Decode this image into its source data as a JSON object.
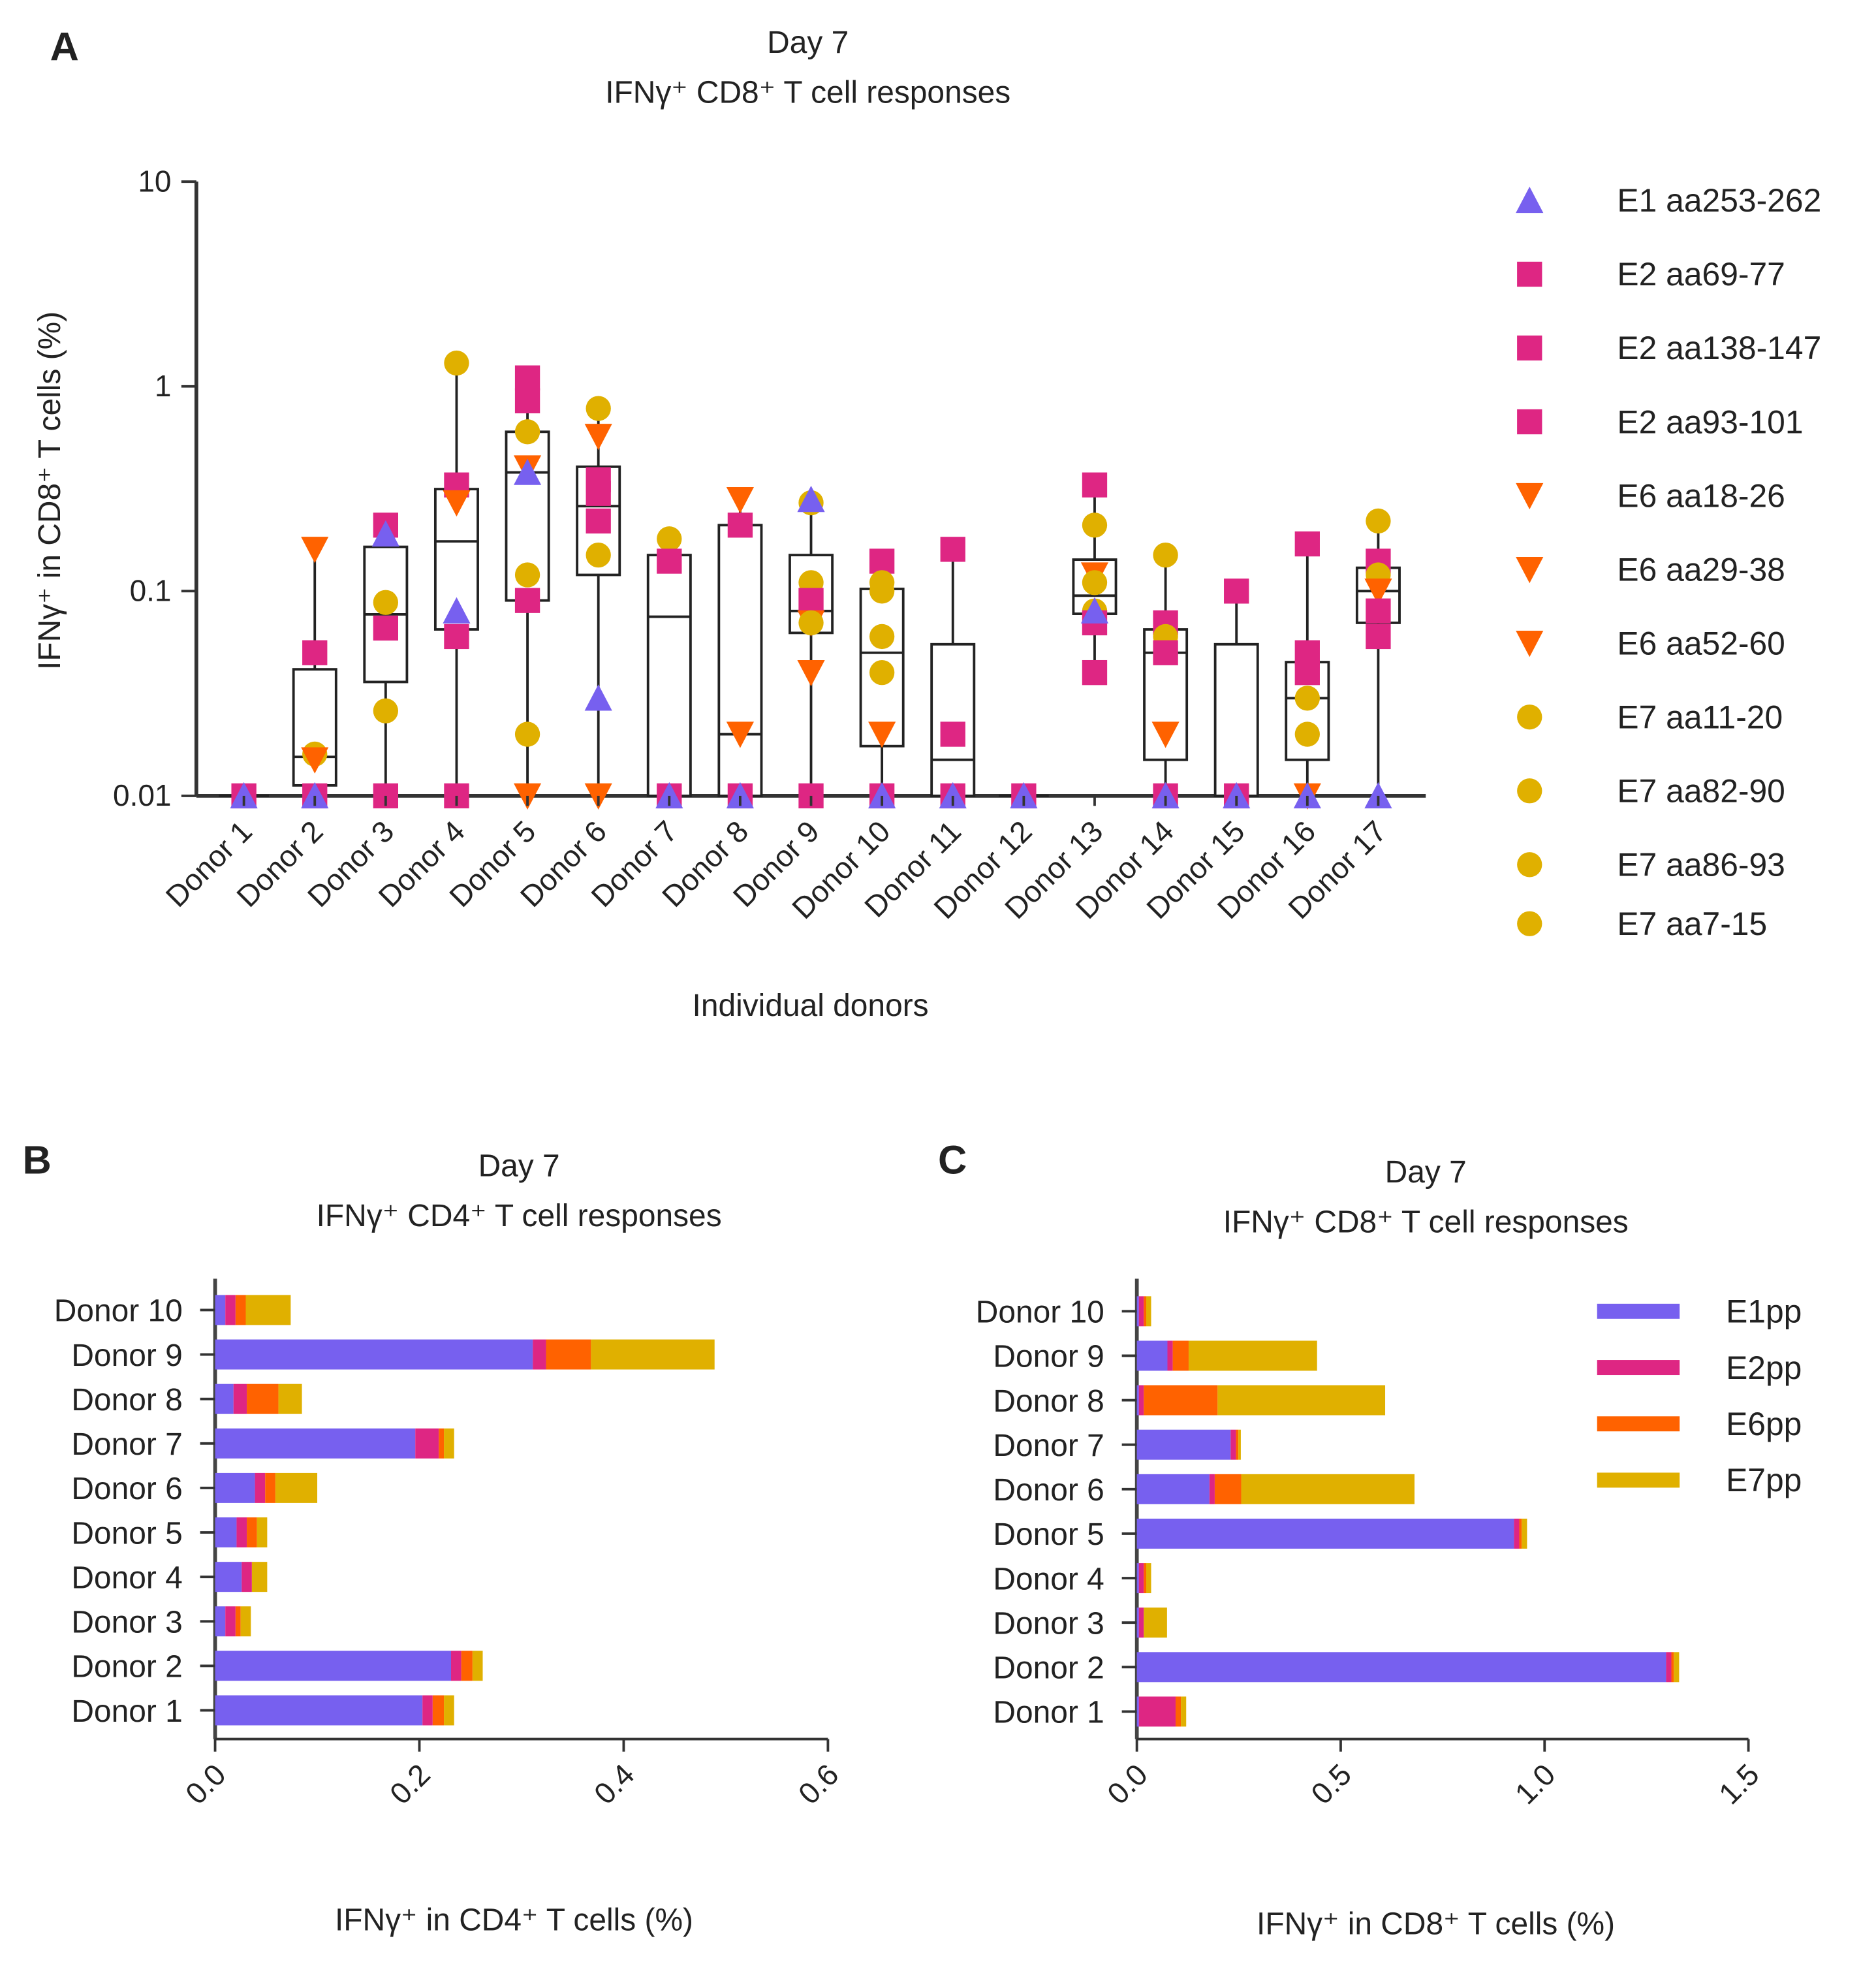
{
  "colors": {
    "E1": "#7760ef",
    "E2": "#de2683",
    "E6": "#ff6200",
    "E7": "#e0b000"
  },
  "chart_data": [
    {
      "panel": "A",
      "type": "scatter",
      "title": [
        "Day 7",
        "IFNγ⁺ CD8⁺ T cell responses"
      ],
      "xlabel": "Individual donors",
      "ylabel": "IFNγ⁺ in CD8⁺ T cells (%)",
      "yscale": "log",
      "ylim": [
        0.01,
        10
      ],
      "yticks": [
        "10",
        "1",
        "0.1",
        "0.01"
      ],
      "overlay": "box-and-whiskers (min to max) per donor",
      "legend_position": "right",
      "legend": [
        {
          "label": "E1 aa253-262",
          "group": "E1",
          "marker": "triangle-up"
        },
        {
          "label": "E2 aa69-77",
          "group": "E2",
          "marker": "square"
        },
        {
          "label": "E2 aa138-147",
          "group": "E2",
          "marker": "square"
        },
        {
          "label": "E2 aa93-101",
          "group": "E2",
          "marker": "square"
        },
        {
          "label": "E6 aa18-26",
          "group": "E6",
          "marker": "triangle-down"
        },
        {
          "label": "E6 aa29-38",
          "group": "E6",
          "marker": "triangle-down"
        },
        {
          "label": "E6 aa52-60",
          "group": "E6",
          "marker": "triangle-down"
        },
        {
          "label": "E7 aa11-20",
          "group": "E7",
          "marker": "circle"
        },
        {
          "label": "E7 aa82-90",
          "group": "E7",
          "marker": "circle"
        },
        {
          "label": "E7 aa86-93",
          "group": "E7",
          "marker": "circle"
        },
        {
          "label": "E7 aa7-15",
          "group": "E7",
          "marker": "circle"
        }
      ],
      "categories": [
        "Donor 1",
        "Donor 2",
        "Donor 3",
        "Donor 4",
        "Donor 5",
        "Donor 6",
        "Donor 7",
        "Donor 8",
        "Donor 9",
        "Donor 10",
        "Donor 11",
        "Donor 12",
        "Donor 13",
        "Donor 14",
        "Donor 15",
        "Donor 16",
        "Donor 17"
      ],
      "points": [
        [
          [
            "E2",
            0.01
          ],
          [
            "E1",
            0.01
          ]
        ],
        [
          [
            "E6",
            0.16
          ],
          [
            "E2",
            0.05
          ],
          [
            "E7",
            0.016
          ],
          [
            "E6",
            0.015
          ],
          [
            "E2",
            0.01
          ],
          [
            "E1",
            0.01
          ]
        ],
        [
          [
            "E2",
            0.21
          ],
          [
            "E1",
            0.19
          ],
          [
            "E7",
            0.088
          ],
          [
            "E2",
            0.066
          ],
          [
            "E7",
            0.026
          ],
          [
            "E2",
            0.01
          ]
        ],
        [
          [
            "E7",
            1.3
          ],
          [
            "E2",
            0.33
          ],
          [
            "E6",
            0.27
          ],
          [
            "E1",
            0.08
          ],
          [
            "E2",
            0.06
          ],
          [
            "E2",
            0.01
          ]
        ],
        [
          [
            "E2",
            1.1
          ],
          [
            "E2",
            0.85
          ],
          [
            "E7",
            0.6
          ],
          [
            "E6",
            0.4
          ],
          [
            "E1",
            0.38
          ],
          [
            "E7",
            0.12
          ],
          [
            "E2",
            0.09
          ],
          [
            "E7",
            0.02
          ],
          [
            "E6",
            0.01
          ]
        ],
        [
          [
            "E7",
            0.78
          ],
          [
            "E6",
            0.57
          ],
          [
            "E2",
            0.35
          ],
          [
            "E2",
            0.3
          ],
          [
            "E2",
            0.22
          ],
          [
            "E7",
            0.15
          ],
          [
            "E1",
            0.03
          ],
          [
            "E6",
            0.01
          ]
        ],
        [
          [
            "E7",
            0.18
          ],
          [
            "E2",
            0.14
          ],
          [
            "E2",
            0.01
          ],
          [
            "E1",
            0.01
          ]
        ],
        [
          [
            "E6",
            0.28
          ],
          [
            "E2",
            0.21
          ],
          [
            "E6",
            0.02
          ],
          [
            "E2",
            0.01
          ],
          [
            "E1",
            0.01
          ]
        ],
        [
          [
            "E7",
            0.27
          ],
          [
            "E1",
            0.28
          ],
          [
            "E7",
            0.11
          ],
          [
            "E2",
            0.09
          ],
          [
            "E6",
            0.07
          ],
          [
            "E7",
            0.07
          ],
          [
            "E6",
            0.04
          ],
          [
            "E2",
            0.01
          ]
        ],
        [
          [
            "E2",
            0.14
          ],
          [
            "E7",
            0.11
          ],
          [
            "E7",
            0.1
          ],
          [
            "E7",
            0.06
          ],
          [
            "E7",
            0.04
          ],
          [
            "E6",
            0.02
          ],
          [
            "E2",
            0.01
          ],
          [
            "E1",
            0.01
          ]
        ],
        [
          [
            "E2",
            0.16
          ],
          [
            "E2",
            0.02
          ],
          [
            "E2",
            0.01
          ],
          [
            "E1",
            0.01
          ]
        ],
        [
          [
            "E2",
            0.01
          ],
          [
            "E1",
            0.01
          ]
        ],
        [
          [
            "E2",
            0.33
          ],
          [
            "E7",
            0.21
          ],
          [
            "E6",
            0.12
          ],
          [
            "E7",
            0.11
          ],
          [
            "E7",
            0.08
          ],
          [
            "E2",
            0.07
          ],
          [
            "E1",
            0.08
          ],
          [
            "E2",
            0.04
          ]
        ],
        [
          [
            "E7",
            0.15
          ],
          [
            "E2",
            0.07
          ],
          [
            "E7",
            0.06
          ],
          [
            "E2",
            0.05
          ],
          [
            "E6",
            0.02
          ],
          [
            "E2",
            0.01
          ],
          [
            "E1",
            0.01
          ]
        ],
        [
          [
            "E2",
            0.1
          ],
          [
            "E2",
            0.01
          ],
          [
            "E1",
            0.01
          ]
        ],
        [
          [
            "E2",
            0.17
          ],
          [
            "E2",
            0.05
          ],
          [
            "E2",
            0.04
          ],
          [
            "E7",
            0.03
          ],
          [
            "E7",
            0.02
          ],
          [
            "E6",
            0.01
          ],
          [
            "E1",
            0.01
          ]
        ],
        [
          [
            "E7",
            0.22
          ],
          [
            "E2",
            0.14
          ],
          [
            "E7",
            0.12
          ],
          [
            "E6",
            0.1
          ],
          [
            "E2",
            0.08
          ],
          [
            "E2",
            0.06
          ],
          [
            "E1",
            0.01
          ]
        ]
      ]
    },
    {
      "panel": "B",
      "type": "bar",
      "orientation": "horizontal-stacked",
      "title": [
        "Day 7",
        "IFNγ⁺ CD4⁺ T cell responses"
      ],
      "xlabel": "IFNγ⁺ in CD4⁺ T cells (%)",
      "xlim": [
        0,
        0.6
      ],
      "xticks": [
        "0.0",
        "0.2",
        "0.4",
        "0.6"
      ],
      "categories": [
        "Donor 1",
        "Donor 2",
        "Donor 3",
        "Donor 4",
        "Donor 5",
        "Donor 6",
        "Donor 7",
        "Donor 8",
        "Donor 9",
        "Donor 10"
      ],
      "series": [
        {
          "group": "E1",
          "values": [
            0.203,
            0.231,
            0.01,
            0.026,
            0.021,
            0.039,
            0.196,
            0.018,
            0.311,
            0.01
          ]
        },
        {
          "group": "E2",
          "values": [
            0.01,
            0.01,
            0.01,
            0.01,
            0.01,
            0.01,
            0.023,
            0.013,
            0.013,
            0.01
          ]
        },
        {
          "group": "E6",
          "values": [
            0.011,
            0.011,
            0.005,
            0.0,
            0.01,
            0.01,
            0.005,
            0.031,
            0.044,
            0.01
          ]
        },
        {
          "group": "E7",
          "values": [
            0.01,
            0.01,
            0.01,
            0.015,
            0.01,
            0.041,
            0.01,
            0.023,
            0.121,
            0.044
          ]
        }
      ]
    },
    {
      "panel": "C",
      "type": "bar",
      "orientation": "horizontal-stacked",
      "title": [
        "Day 7",
        "IFNγ⁺ CD8⁺ T cell responses"
      ],
      "xlabel": "IFNγ⁺ in CD8⁺ T cells (%)",
      "xlim": [
        0,
        1.5
      ],
      "xticks": [
        "0.0",
        "0.5",
        "1.0",
        "1.5"
      ],
      "legend_position": "top-right",
      "categories": [
        "Donor 1",
        "Donor 2",
        "Donor 3",
        "Donor 4",
        "Donor 5",
        "Donor 6",
        "Donor 7",
        "Donor 8",
        "Donor 9",
        "Donor 10"
      ],
      "series": [
        {
          "name": "E1pp",
          "group": "E1",
          "values": [
            0.005,
            1.298,
            0.005,
            0.005,
            0.925,
            0.178,
            0.23,
            0.005,
            0.075,
            0.005
          ]
        },
        {
          "name": "E2pp",
          "group": "E2",
          "values": [
            0.09,
            0.013,
            0.012,
            0.012,
            0.013,
            0.013,
            0.013,
            0.012,
            0.013,
            0.012
          ]
        },
        {
          "name": "E6pp",
          "group": "E6",
          "values": [
            0.013,
            0.006,
            0.0,
            0.006,
            0.006,
            0.065,
            0.006,
            0.181,
            0.039,
            0.006
          ]
        },
        {
          "name": "E7pp",
          "group": "E7",
          "values": [
            0.013,
            0.013,
            0.057,
            0.012,
            0.013,
            0.425,
            0.006,
            0.411,
            0.315,
            0.012
          ]
        }
      ]
    }
  ]
}
